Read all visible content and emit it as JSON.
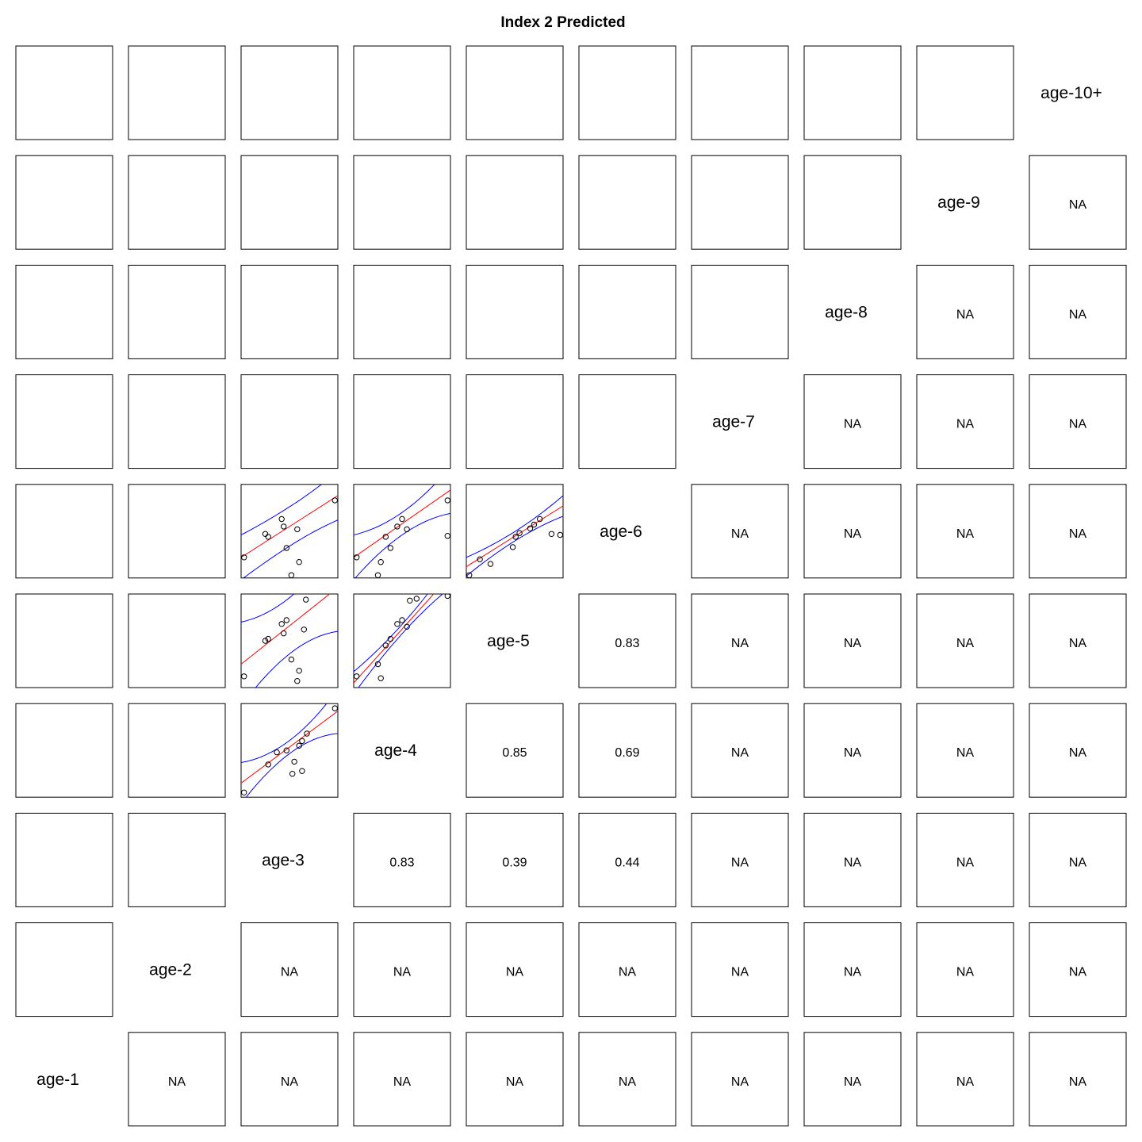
{
  "title": "Index 2 Predicted",
  "colors": {
    "fit_line": "#ff0000",
    "ci_band": "#0000ff",
    "points": "#000000",
    "frame": "#000000"
  },
  "chart_data": {
    "type": "scatter-matrix",
    "title": "Index 2 Predicted",
    "variables": [
      "age-1",
      "age-2",
      "age-3",
      "age-4",
      "age-5",
      "age-6",
      "age-7",
      "age-8",
      "age-9",
      "age-10+"
    ],
    "correlations": [
      {
        "row": "age-1",
        "col": "age-2",
        "value": "NA"
      },
      {
        "row": "age-1",
        "col": "age-3",
        "value": "NA"
      },
      {
        "row": "age-1",
        "col": "age-4",
        "value": "NA"
      },
      {
        "row": "age-1",
        "col": "age-5",
        "value": "NA"
      },
      {
        "row": "age-1",
        "col": "age-6",
        "value": "NA"
      },
      {
        "row": "age-1",
        "col": "age-7",
        "value": "NA"
      },
      {
        "row": "age-1",
        "col": "age-8",
        "value": "NA"
      },
      {
        "row": "age-1",
        "col": "age-9",
        "value": "NA"
      },
      {
        "row": "age-1",
        "col": "age-10+",
        "value": "NA"
      },
      {
        "row": "age-2",
        "col": "age-3",
        "value": "NA"
      },
      {
        "row": "age-2",
        "col": "age-4",
        "value": "NA"
      },
      {
        "row": "age-2",
        "col": "age-5",
        "value": "NA"
      },
      {
        "row": "age-2",
        "col": "age-6",
        "value": "NA"
      },
      {
        "row": "age-2",
        "col": "age-7",
        "value": "NA"
      },
      {
        "row": "age-2",
        "col": "age-8",
        "value": "NA"
      },
      {
        "row": "age-2",
        "col": "age-9",
        "value": "NA"
      },
      {
        "row": "age-2",
        "col": "age-10+",
        "value": "NA"
      },
      {
        "row": "age-3",
        "col": "age-4",
        "value": "0.83"
      },
      {
        "row": "age-3",
        "col": "age-5",
        "value": "0.39"
      },
      {
        "row": "age-3",
        "col": "age-6",
        "value": "0.44"
      },
      {
        "row": "age-3",
        "col": "age-7",
        "value": "NA"
      },
      {
        "row": "age-3",
        "col": "age-8",
        "value": "NA"
      },
      {
        "row": "age-3",
        "col": "age-9",
        "value": "NA"
      },
      {
        "row": "age-3",
        "col": "age-10+",
        "value": "NA"
      },
      {
        "row": "age-4",
        "col": "age-5",
        "value": "0.85"
      },
      {
        "row": "age-4",
        "col": "age-6",
        "value": "0.69"
      },
      {
        "row": "age-4",
        "col": "age-7",
        "value": "NA"
      },
      {
        "row": "age-4",
        "col": "age-8",
        "value": "NA"
      },
      {
        "row": "age-4",
        "col": "age-9",
        "value": "NA"
      },
      {
        "row": "age-4",
        "col": "age-10+",
        "value": "NA"
      },
      {
        "row": "age-5",
        "col": "age-6",
        "value": "0.83"
      },
      {
        "row": "age-5",
        "col": "age-7",
        "value": "NA"
      },
      {
        "row": "age-5",
        "col": "age-8",
        "value": "NA"
      },
      {
        "row": "age-5",
        "col": "age-9",
        "value": "NA"
      },
      {
        "row": "age-5",
        "col": "age-10+",
        "value": "NA"
      },
      {
        "row": "age-6",
        "col": "age-7",
        "value": "NA"
      },
      {
        "row": "age-6",
        "col": "age-8",
        "value": "NA"
      },
      {
        "row": "age-6",
        "col": "age-9",
        "value": "NA"
      },
      {
        "row": "age-6",
        "col": "age-10+",
        "value": "NA"
      },
      {
        "row": "age-7",
        "col": "age-8",
        "value": "NA"
      },
      {
        "row": "age-7",
        "col": "age-9",
        "value": "NA"
      },
      {
        "row": "age-7",
        "col": "age-10+",
        "value": "NA"
      },
      {
        "row": "age-8",
        "col": "age-9",
        "value": "NA"
      },
      {
        "row": "age-8",
        "col": "age-10+",
        "value": "NA"
      },
      {
        "row": "age-9",
        "col": "age-10+",
        "value": "NA"
      }
    ],
    "scatter_panels": [
      {
        "x": "age-3",
        "y": "age-4",
        "points": [
          [
            0.03,
            0.05
          ],
          [
            0.28,
            0.35
          ],
          [
            0.37,
            0.48
          ],
          [
            0.47,
            0.5
          ],
          [
            0.55,
            0.38
          ],
          [
            0.63,
            0.28
          ],
          [
            0.53,
            0.25
          ],
          [
            0.6,
            0.55
          ],
          [
            0.63,
            0.6
          ],
          [
            0.68,
            0.68
          ],
          [
            0.97,
            0.95
          ]
        ],
        "fit": [
          0.15,
          0.77
        ],
        "band_half": [
          0.22,
          0.07,
          0.24
        ]
      },
      {
        "x": "age-3",
        "y": "age-5",
        "points": [
          [
            0.03,
            0.12
          ],
          [
            0.25,
            0.5
          ],
          [
            0.28,
            0.52
          ],
          [
            0.42,
            0.68
          ],
          [
            0.44,
            0.58
          ],
          [
            0.47,
            0.72
          ],
          [
            0.52,
            0.3
          ],
          [
            0.6,
            0.18
          ],
          [
            0.58,
            0.07
          ],
          [
            0.65,
            0.62
          ],
          [
            0.67,
            0.94
          ]
        ],
        "fit": [
          0.25,
          0.82
        ],
        "band_half": [
          0.45,
          0.3,
          0.47
        ]
      },
      {
        "x": "age-4",
        "y": "age-5",
        "points": [
          [
            0.03,
            0.12
          ],
          [
            0.28,
            0.1
          ],
          [
            0.25,
            0.25
          ],
          [
            0.33,
            0.45
          ],
          [
            0.38,
            0.52
          ],
          [
            0.45,
            0.68
          ],
          [
            0.5,
            0.72
          ],
          [
            0.55,
            0.65
          ],
          [
            0.58,
            0.93
          ],
          [
            0.65,
            0.95
          ],
          [
            0.97,
            0.98
          ]
        ],
        "fit": [
          0.05,
          1.15
        ],
        "band_half": [
          0.12,
          0.05,
          0.13
        ]
      },
      {
        "x": "age-3",
        "y": "age-6",
        "points": [
          [
            0.03,
            0.22
          ],
          [
            0.25,
            0.47
          ],
          [
            0.28,
            0.44
          ],
          [
            0.42,
            0.63
          ],
          [
            0.44,
            0.55
          ],
          [
            0.47,
            0.32
          ],
          [
            0.52,
            0.03
          ],
          [
            0.6,
            0.17
          ],
          [
            0.58,
            0.52
          ],
          [
            0.97,
            0.83
          ]
        ],
        "fit": [
          0.22,
          0.66
        ],
        "band_half": [
          0.24,
          0.21,
          0.26
        ]
      },
      {
        "x": "age-4",
        "y": "age-6",
        "points": [
          [
            0.03,
            0.22
          ],
          [
            0.28,
            0.17
          ],
          [
            0.25,
            0.03
          ],
          [
            0.33,
            0.44
          ],
          [
            0.38,
            0.32
          ],
          [
            0.45,
            0.55
          ],
          [
            0.5,
            0.63
          ],
          [
            0.55,
            0.52
          ],
          [
            0.97,
            0.83
          ],
          [
            0.97,
            0.45
          ]
        ],
        "fit": [
          0.22,
          0.72
        ],
        "band_half": [
          0.24,
          0.12,
          0.25
        ]
      },
      {
        "x": "age-5",
        "y": "age-6",
        "points": [
          [
            0.03,
            0.03
          ],
          [
            0.14,
            0.2
          ],
          [
            0.25,
            0.15
          ],
          [
            0.48,
            0.33
          ],
          [
            0.51,
            0.44
          ],
          [
            0.55,
            0.48
          ],
          [
            0.66,
            0.53
          ],
          [
            0.7,
            0.57
          ],
          [
            0.76,
            0.63
          ],
          [
            0.88,
            0.47
          ],
          [
            0.97,
            0.46
          ]
        ],
        "fit": [
          0.12,
          0.65
        ],
        "band_half": [
          0.1,
          0.05,
          0.11
        ]
      }
    ]
  }
}
